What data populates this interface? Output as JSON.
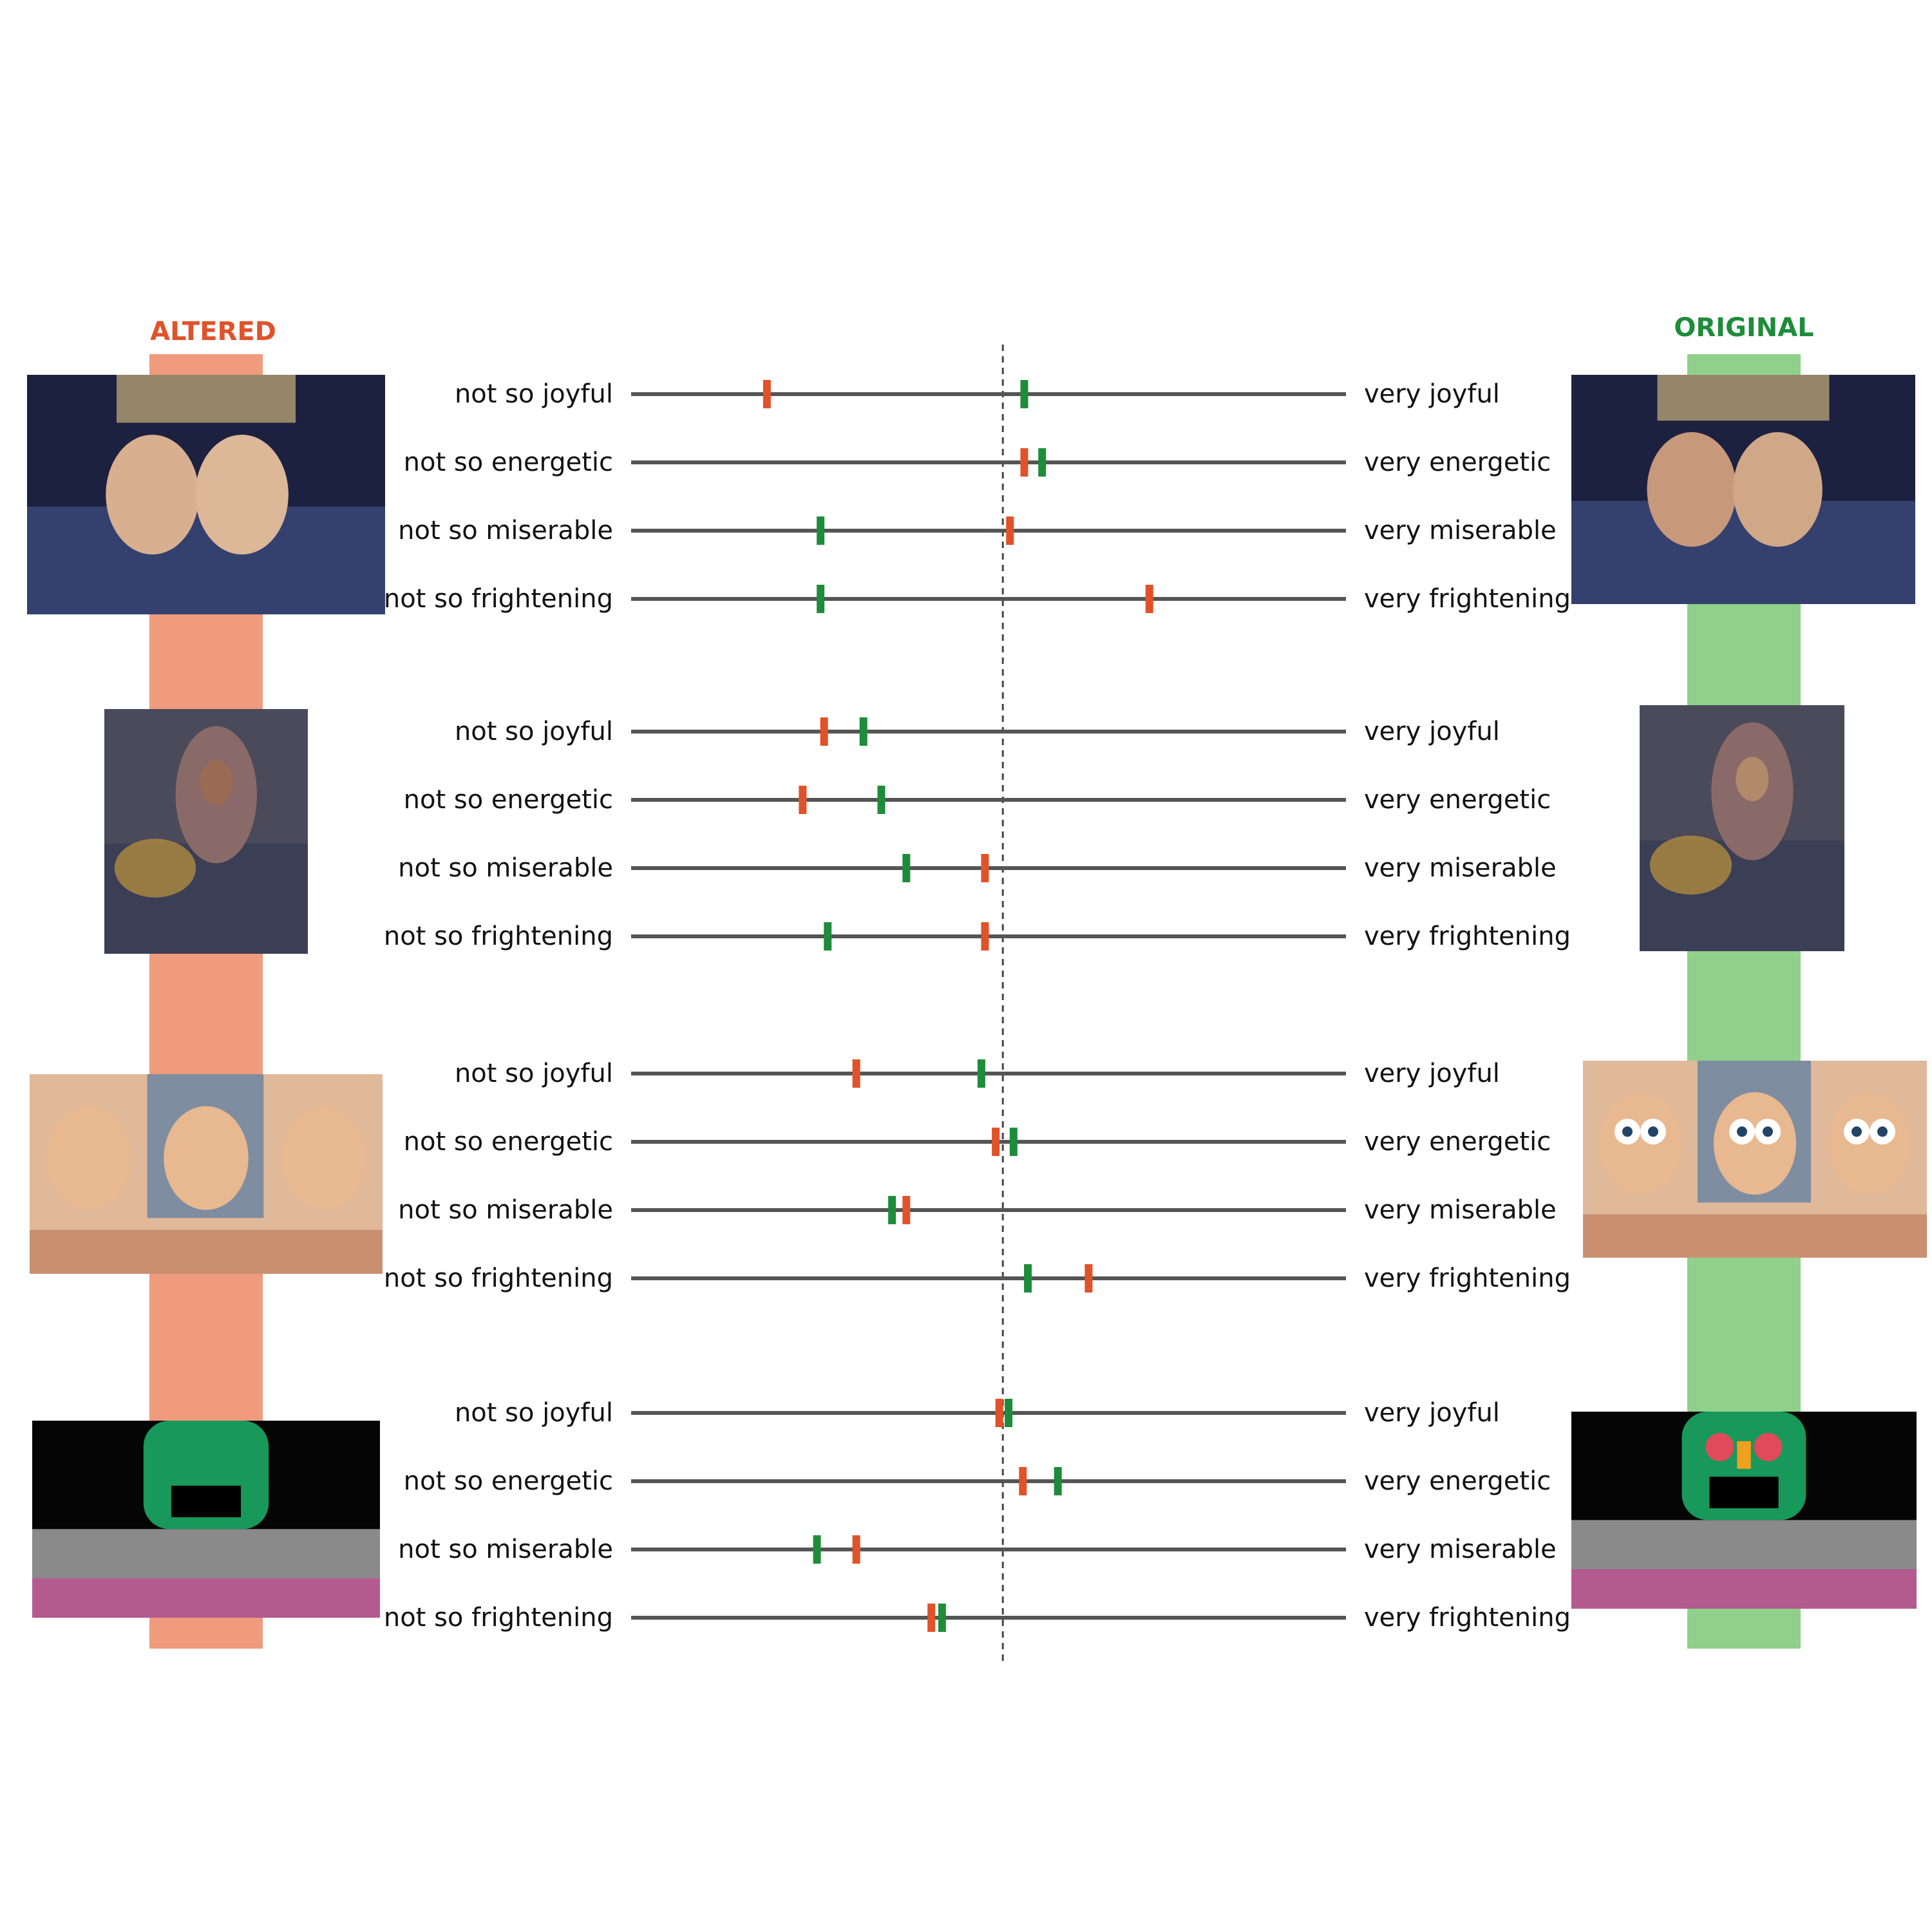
{
  "chart_data": {
    "type": "scatter",
    "headers": {
      "altered": "ALTERED",
      "original": "ORIGINAL"
    },
    "colors": {
      "altered": "#e0522a",
      "original": "#1e8c3a",
      "altered_band": "#f09a7e",
      "original_band": "#8fd08a",
      "axis_line": "#555555",
      "midline": "#444444"
    },
    "scale": {
      "min": 0,
      "max": 1,
      "midpoint": 0.52
    },
    "stimuli": [
      {
        "thumbnail_altered": "masked-faces-collage-icon",
        "thumbnail_original": "two-faces-collage-icon",
        "scales": [
          {
            "left_label": "not so joyful",
            "right_label": "very joyful",
            "altered": 0.19,
            "original": 0.55
          },
          {
            "left_label": "not so energetic",
            "right_label": "very energetic",
            "altered": 0.55,
            "original": 0.575
          },
          {
            "left_label": "not so miserable",
            "right_label": "very miserable",
            "altered": 0.53,
            "original": 0.265
          },
          {
            "left_label": "not so frightening",
            "right_label": "very frightening",
            "altered": 0.725,
            "original": 0.265
          }
        ]
      },
      {
        "thumbnail_altered": "masked-madonna-painting-icon",
        "thumbnail_original": "madonna-painting-icon",
        "scales": [
          {
            "left_label": "not so joyful",
            "right_label": "very joyful",
            "altered": 0.27,
            "original": 0.325
          },
          {
            "left_label": "not so energetic",
            "right_label": "very energetic",
            "altered": 0.24,
            "original": 0.35
          },
          {
            "left_label": "not so miserable",
            "right_label": "very miserable",
            "altered": 0.495,
            "original": 0.385
          },
          {
            "left_label": "not so frightening",
            "right_label": "very frightening",
            "altered": 0.495,
            "original": 0.275
          }
        ]
      },
      {
        "thumbnail_altered": "masked-cartoon-collage-icon",
        "thumbnail_original": "cartoon-collage-icon",
        "scales": [
          {
            "left_label": "not so joyful",
            "right_label": "very joyful",
            "altered": 0.315,
            "original": 0.49
          },
          {
            "left_label": "not so energetic",
            "right_label": "very energetic",
            "altered": 0.51,
            "original": 0.535
          },
          {
            "left_label": "not so miserable",
            "right_label": "very miserable",
            "altered": 0.385,
            "original": 0.365
          },
          {
            "left_label": "not so frightening",
            "right_label": "very frightening",
            "altered": 0.64,
            "original": 0.555
          }
        ]
      },
      {
        "thumbnail_altered": "masked-green-mask-stage-icon",
        "thumbnail_original": "green-mask-stage-icon",
        "scales": [
          {
            "left_label": "not so joyful",
            "right_label": "very joyful",
            "altered": 0.515,
            "original": 0.528
          },
          {
            "left_label": "not so energetic",
            "right_label": "very energetic",
            "altered": 0.548,
            "original": 0.597
          },
          {
            "left_label": "not so miserable",
            "right_label": "very miserable",
            "altered": 0.315,
            "original": 0.26
          },
          {
            "left_label": "not so frightening",
            "right_label": "very frightening",
            "altered": 0.42,
            "original": 0.435
          }
        ]
      }
    ]
  }
}
